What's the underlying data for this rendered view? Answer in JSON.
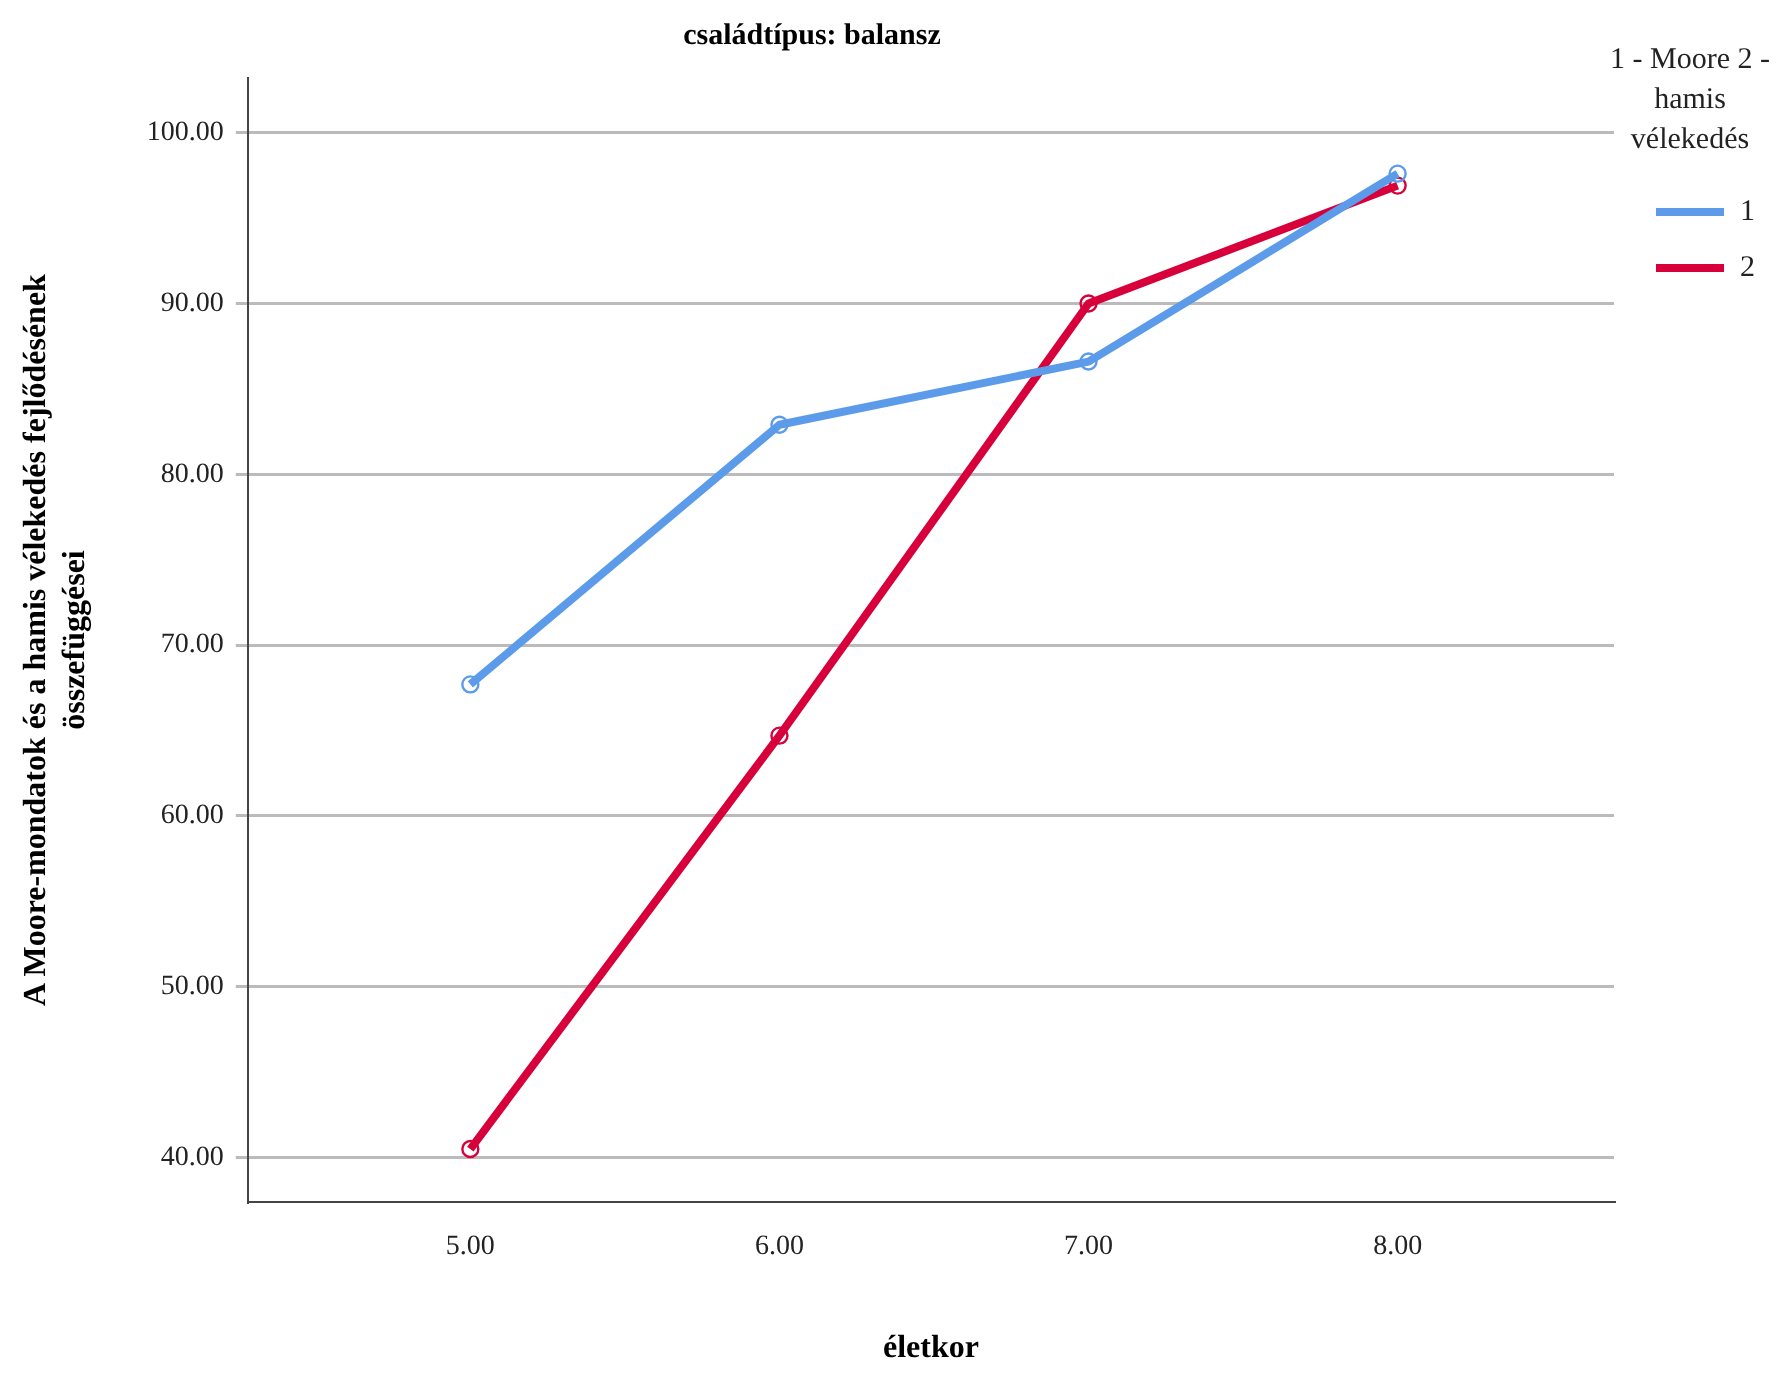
{
  "chart_data": {
    "type": "line",
    "title": "családtípus: balansz",
    "xlabel": "életkor",
    "ylabel": "A Moore-mondatok és a hamis vélekedés fejlődésének összefüggései",
    "legend_title": "1 - Moore 2 - hamis vélekedés",
    "x": [
      5,
      6,
      7,
      8
    ],
    "xlim": [
      4.28,
      8.7
    ],
    "xticks": [
      {
        "value": 5,
        "label": "5.00"
      },
      {
        "value": 6,
        "label": "6.00"
      },
      {
        "value": 7,
        "label": "7.00"
      },
      {
        "value": 8,
        "label": "8.00"
      }
    ],
    "ylim": [
      37.4,
      103.2
    ],
    "yticks": [
      {
        "value": 40,
        "label": "40.00"
      },
      {
        "value": 50,
        "label": "50.00"
      },
      {
        "value": 60,
        "label": "60.00"
      },
      {
        "value": 70,
        "label": "70.00"
      },
      {
        "value": 80,
        "label": "80.00"
      },
      {
        "value": 90,
        "label": "90.00"
      },
      {
        "value": 100,
        "label": "100.00"
      }
    ],
    "series": [
      {
        "name": "1",
        "color": "#5b9bea",
        "values": [
          67.7,
          82.9,
          86.6,
          97.6
        ]
      },
      {
        "name": "2",
        "color": "#d7003a",
        "values": [
          40.5,
          64.7,
          90.0,
          96.9
        ]
      }
    ],
    "grid": "y",
    "legend": "right",
    "marker": "circle",
    "line_style": "solid"
  }
}
